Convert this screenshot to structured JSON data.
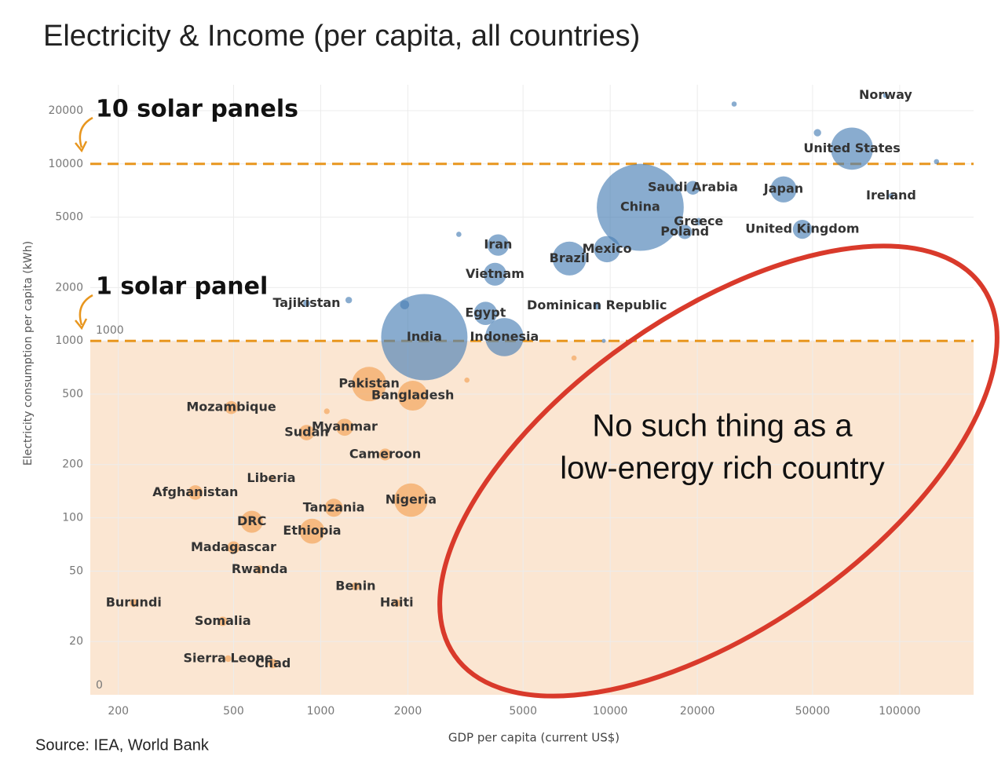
{
  "chart_data": {
    "type": "scatter",
    "title": "Electricity & Income (per capita, all countries)",
    "x_label": "GDP per capita (current US$)",
    "y_label": "Electricity consumption per capita (kWh)",
    "source": "Source: IEA, World Bank",
    "log_x": true,
    "log_y": true,
    "grid": true,
    "xlim": [
      160,
      180000
    ],
    "ylim": [
      10,
      28000
    ],
    "xticks": [
      200,
      500,
      1000,
      2000,
      5000,
      10000,
      20000,
      50000,
      100000
    ],
    "yticks": [
      20000,
      10000,
      5000,
      2000,
      1000,
      500,
      200,
      100,
      50,
      20
    ],
    "hlines": [
      10000,
      1000
    ],
    "hline_color": "#e8961e",
    "shaded_below": 1000,
    "shade_color": "#fbe6d2",
    "annotations": {
      "upper_line": "10 solar panels",
      "lower_line": "1 solar panel",
      "band_label": "1000",
      "zero_label": "0",
      "claim": [
        "No such thing as a",
        "low-energy rich country"
      ]
    },
    "series": [
      {
        "color": "#4a7fb5",
        "labels": [
          "Norway",
          "United States",
          "Saudi Arabia",
          "Japan",
          "Ireland",
          "China",
          "Greece",
          "Poland",
          "United Kingdom",
          "Iran",
          "Brazil",
          "Mexico",
          "Vietnam",
          "Tajikistan",
          "Egypt",
          "Dominican Republic",
          "India",
          "Indonesia",
          null,
          null,
          null,
          null,
          null,
          null,
          null
        ],
        "x": [
          89400,
          68400,
          19300,
          39700,
          93400,
          12700,
          20200,
          18100,
          46100,
          4100,
          7230,
          9750,
          4000,
          894,
          3710,
          9000,
          2280,
          4310,
          26800,
          134000,
          52000,
          3000,
          1250,
          1950,
          9500
        ],
        "y": [
          24400,
          12200,
          7330,
          7180,
          6610,
          5680,
          4720,
          4130,
          4270,
          3480,
          2920,
          3300,
          2380,
          1630,
          1430,
          1580,
          1050,
          1050,
          21800,
          10300,
          15000,
          4000,
          1700,
          1600,
          1000
        ],
        "sizes": [
          5,
          330,
          35,
          126,
          5,
          1400,
          10,
          38,
          67,
          85,
          212,
          128,
          97,
          9,
          100,
          11,
          1380,
          270,
          5,
          5,
          10,
          5,
          8,
          15,
          3
        ]
      },
      {
        "color": "#f2a154",
        "labels": [
          "Pakistan",
          "Bangladesh",
          "Mozambique",
          "Myanmar",
          "Sudan",
          "Cameroon",
          "Liberia",
          "Afghanistan",
          "Nigeria",
          "Tanzania",
          "DRC",
          "Ethiopia",
          "Madagascar",
          "Rwanda",
          "Benin",
          "Haiti",
          "Burundi",
          "Somalia",
          "Sierra Leone",
          "Chad",
          null,
          null,
          null
        ],
        "x": [
          1470,
          2080,
          491,
          1210,
          894,
          1670,
          675,
          369,
          2050,
          1110,
          578,
          934,
          500,
          615,
          1320,
          1830,
          226,
          459,
          479,
          684,
          3200,
          7500,
          1050
        ],
        "y": [
          570,
          490,
          420,
          325,
          303,
          228,
          167,
          139,
          126,
          114,
          95,
          84,
          68,
          51,
          41,
          33,
          33,
          26,
          16,
          15,
          600,
          800,
          400
        ],
        "sizes": [
          220,
          165,
          31,
          54,
          44,
          26,
          5,
          39,
          206,
          60,
          90,
          115,
          28,
          13,
          12,
          11,
          12,
          16,
          8,
          16,
          5,
          5,
          6
        ]
      }
    ]
  }
}
